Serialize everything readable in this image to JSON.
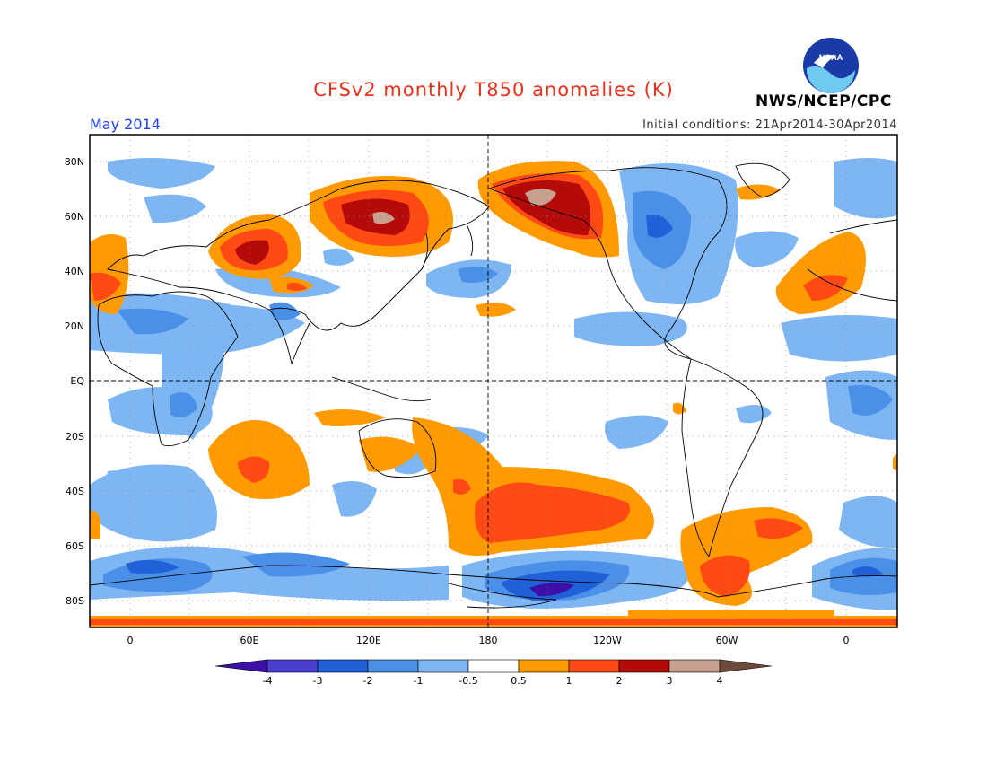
{
  "header": {
    "title": "CFSv2 monthly T850 anomalies (K)",
    "month": "May 2014",
    "initial_conditions": "Initial conditions: 21Apr2014-30Apr2014",
    "agency": "NWS/NCEP/CPC",
    "logo_text": "NOAA"
  },
  "axes": {
    "lat_labels": [
      "80N",
      "60N",
      "40N",
      "20N",
      "EQ",
      "20S",
      "40S",
      "60S",
      "80S"
    ],
    "lon_labels": [
      "0",
      "60E",
      "120E",
      "180",
      "120W",
      "60W",
      "0"
    ]
  },
  "colorbar": {
    "labels": [
      "-4",
      "-3",
      "-2",
      "-1",
      "-0.5",
      "0.5",
      "1",
      "2",
      "3",
      "4"
    ],
    "colors": [
      "#3a10a8",
      "#4a3fd0",
      "#2060d8",
      "#4a90e8",
      "#7db6f2",
      "#ffffff",
      "#ff9b00",
      "#ff4a14",
      "#b40a0a",
      "#c8a090",
      "#6e4a3a"
    ]
  },
  "colors": {
    "title": "#e8321e",
    "month": "#1f3fff",
    "neg_weak": "#7db6f2",
    "neg_mod": "#4a90e8",
    "neg_strong": "#2060d8",
    "pos_weak": "#ff9b00",
    "pos_mod": "#ff4a14",
    "pos_strong": "#b40a0a",
    "pos_extreme": "#c8a090"
  }
}
